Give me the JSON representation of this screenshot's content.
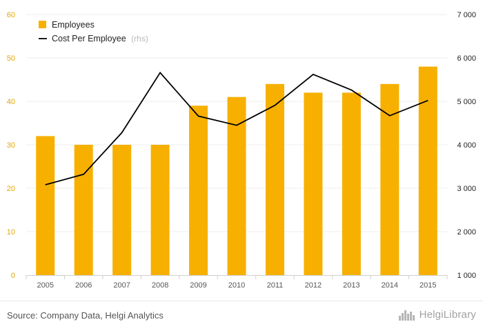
{
  "chart_data": {
    "type": "bar",
    "categories": [
      "2005",
      "2006",
      "2007",
      "2008",
      "2009",
      "2010",
      "2011",
      "2012",
      "2013",
      "2014",
      "2015"
    ],
    "series": [
      {
        "name": "Employees",
        "type": "bar",
        "axis": "left",
        "color": "#f7b000",
        "values": [
          32,
          30,
          30,
          30,
          39,
          41,
          44,
          42,
          42,
          44,
          48
        ]
      },
      {
        "name": "Cost Per Employee",
        "name_suffix": "(rhs)",
        "type": "line",
        "axis": "right",
        "color": "#000000",
        "values": [
          3080,
          3320,
          4280,
          5660,
          4660,
          4450,
          4910,
          5620,
          5260,
          4670,
          5020
        ]
      }
    ],
    "left_axis": {
      "ylim": [
        0,
        60
      ],
      "ticks": [
        "0",
        "10",
        "20",
        "30",
        "40",
        "50",
        "60"
      ],
      "tick_values": [
        0,
        10,
        20,
        30,
        40,
        50,
        60
      ]
    },
    "right_axis": {
      "ylim": [
        1000,
        7000
      ],
      "ticks": [
        "1 000",
        "2 000",
        "3 000",
        "4 000",
        "5 000",
        "6 000",
        "7 000"
      ],
      "tick_values": [
        1000,
        2000,
        3000,
        4000,
        5000,
        6000,
        7000
      ]
    },
    "grid": true,
    "legend_position": "top-left"
  },
  "legend": {
    "employees_label": "Employees",
    "cost_label": "Cost Per Employee",
    "cost_suffix": "(rhs)"
  },
  "footer": {
    "source": "Source: Company Data, Helgi Analytics",
    "logo_text": "HelgiLibrary",
    "logo_icon": "city-skyline-icon"
  }
}
